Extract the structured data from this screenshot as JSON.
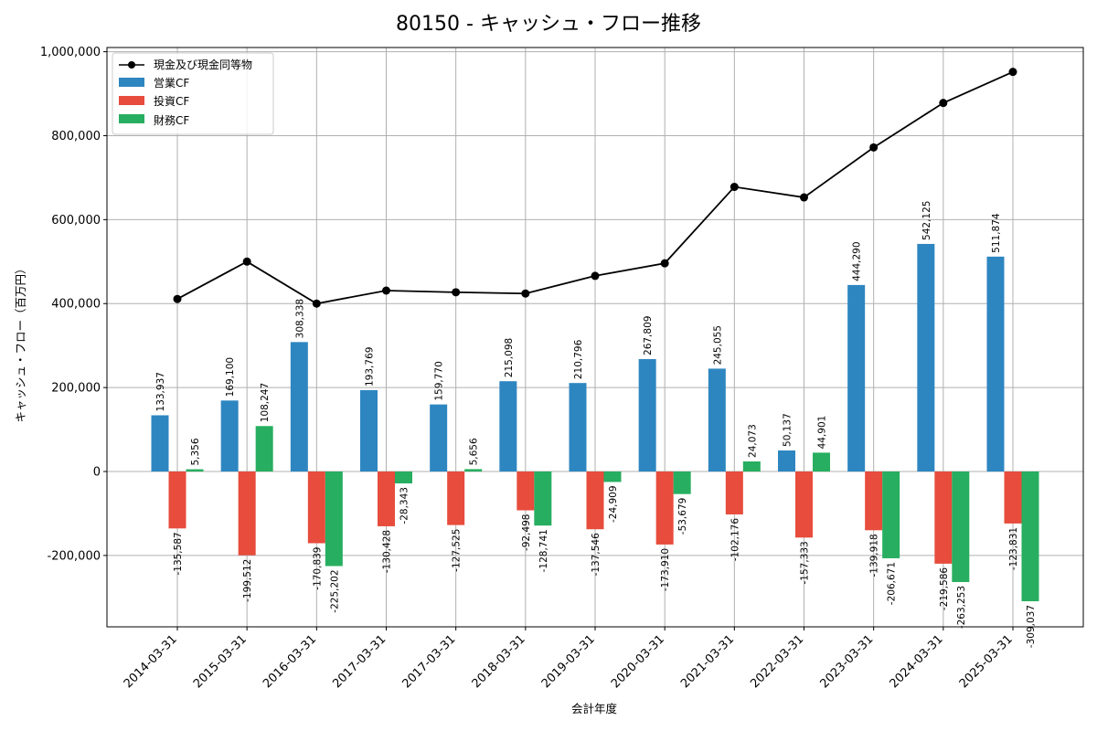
{
  "chart_data": {
    "type": "bar",
    "title": "80150 - キャッシュ・フロー推移",
    "xlabel": "会計年度",
    "ylabel": "キャッシュ・フロー（百万円）",
    "ylim": [
      -370000,
      1010000
    ],
    "yticks": [
      -200000,
      0,
      200000,
      400000,
      600000,
      800000,
      1000000
    ],
    "ytick_labels": [
      "-200,000",
      "0",
      "200,000",
      "400,000",
      "600,000",
      "800,000",
      "1,000,000"
    ],
    "grid": true,
    "legend_position": "top-left",
    "categories": [
      "2014-03-31",
      "2015-03-31",
      "2016-03-31",
      "2017-03-31",
      "2017-03-31",
      "2018-03-31",
      "2019-03-31",
      "2020-03-31",
      "2021-03-31",
      "2022-03-31",
      "2023-03-31",
      "2024-03-31",
      "2025-03-31"
    ],
    "series": [
      {
        "name": "営業CF",
        "kind": "bar",
        "color": "#2e86c1",
        "values": [
          133937,
          169100,
          308338,
          193769,
          159770,
          215098,
          210796,
          267809,
          245055,
          50137,
          444290,
          542125,
          511874
        ],
        "labels": [
          "133,937",
          "169,100",
          "308,338",
          "193,769",
          "159,770",
          "215,098",
          "210,796",
          "267,809",
          "245,055",
          "50,137",
          "444,290",
          "542,125",
          "511,874"
        ]
      },
      {
        "name": "投資CF",
        "kind": "bar",
        "color": "#e74c3c",
        "values": [
          -135587,
          -199512,
          -170839,
          -130428,
          -127525,
          -92498,
          -137546,
          -173910,
          -102176,
          -157333,
          -139918,
          -219586,
          -123831
        ],
        "labels": [
          "-135,587",
          "-199,512",
          "-170,839",
          "-130,428",
          "-127,525",
          "-92,498",
          "-137,546",
          "-173,910",
          "-102,176",
          "-157,333",
          "-139,918",
          "-219,586",
          "-123,831"
        ]
      },
      {
        "name": "財務CF",
        "kind": "bar",
        "color": "#27ae60",
        "values": [
          5356,
          108247,
          -225202,
          -28343,
          5656,
          -128741,
          -24909,
          -53679,
          24073,
          44901,
          -206671,
          -263253,
          -309037
        ],
        "labels": [
          "5,356",
          "108,247",
          "-225,202",
          "-28,343",
          "5,656",
          "-128,741",
          "-24,909",
          "-53,679",
          "24,073",
          "44,901",
          "-206,671",
          "-263,253",
          "-309,037"
        ]
      },
      {
        "name": "現金及び現金同等物",
        "kind": "line",
        "color": "#000000",
        "values": [
          411000,
          500000,
          400000,
          431000,
          427000,
          424000,
          466000,
          496000,
          678000,
          653000,
          772000,
          878000,
          952000
        ]
      }
    ]
  }
}
